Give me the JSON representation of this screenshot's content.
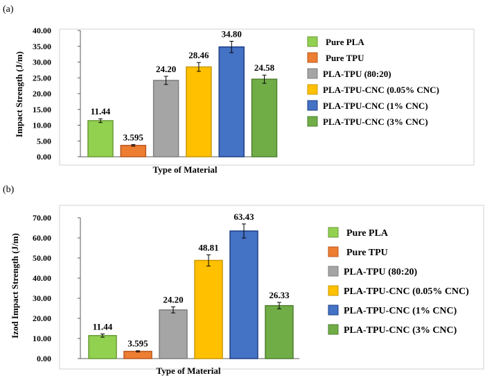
{
  "colors": {
    "pure_pla": "#92d050",
    "pure_tpu": "#ed7d31",
    "pla_tpu": "#a5a5a5",
    "cnc_005": "#ffc000",
    "cnc_1": "#4472c4",
    "cnc_3": "#70ad47"
  },
  "chart_data": [
    {
      "type": "bar",
      "panel_label": "(a)",
      "title": "",
      "xlabel": "Type of Material",
      "ylabel": "Impact Strength (J/m)",
      "ylim": [
        0,
        40
      ],
      "yticks": [
        "0.00",
        "5.00",
        "10.00",
        "15.00",
        "20.00",
        "25.00",
        "30.00",
        "35.00",
        "40.00"
      ],
      "categories": [
        "Pure PLA",
        "Pure TPU",
        "PLA-TPU (80:20)",
        "PLA-TPU-CNC (0.05% CNC)",
        "PLA-TPU-CNC (1% CNC)",
        "PLA-TPU-CNC (3% CNC)"
      ],
      "values": [
        11.44,
        3.595,
        24.2,
        28.46,
        34.8,
        24.58
      ],
      "labels": [
        "11.44",
        "3.595",
        "24.20",
        "28.46",
        "34.80",
        "24.58"
      ],
      "errors": [
        0.6,
        0.25,
        1.3,
        1.4,
        1.8,
        1.3
      ],
      "legend": [
        "Pure PLA",
        "Pure TPU",
        "PLA-TPU (80:20)",
        "PLA-TPU-CNC (0.05% CNC)",
        "PLA-TPU-CNC (1% CNC)",
        "PLA-TPU-CNC (3% CNC)"
      ],
      "legend_position": "right",
      "grid": false
    },
    {
      "type": "bar",
      "panel_label": "(b)",
      "title": "",
      "xlabel": "Type of Material",
      "ylabel": "Izod Impact Strength (J/m)",
      "ylim": [
        0,
        70
      ],
      "yticks": [
        "0.00",
        "10.00",
        "20.00",
        "30.00",
        "40.00",
        "50.00",
        "60.00",
        "70.00"
      ],
      "categories": [
        "Pure PLA",
        "Pure TPU",
        "PLA-TPU (80:20)",
        "PLA-TPU-CNC (0.05% CNC)",
        "PLA-TPU-CNC (1% CNC)",
        "PLA-TPU-CNC (3% CNC)"
      ],
      "values": [
        11.44,
        3.595,
        24.2,
        48.81,
        63.43,
        26.33
      ],
      "labels": [
        "11.44",
        "3.595",
        "24.20",
        "48.81",
        "63.43",
        "26.33"
      ],
      "errors": [
        0.8,
        0.3,
        1.5,
        2.8,
        3.5,
        1.6
      ],
      "legend": [
        "Pure PLA",
        "Pure TPU",
        "PLA-TPU (80:20)",
        "PLA-TPU-CNC (0.05% CNC)",
        "PLA-TPU-CNC (1% CNC)",
        "PLA-TPU-CNC (3% CNC)"
      ],
      "legend_position": "right",
      "grid": false
    }
  ]
}
